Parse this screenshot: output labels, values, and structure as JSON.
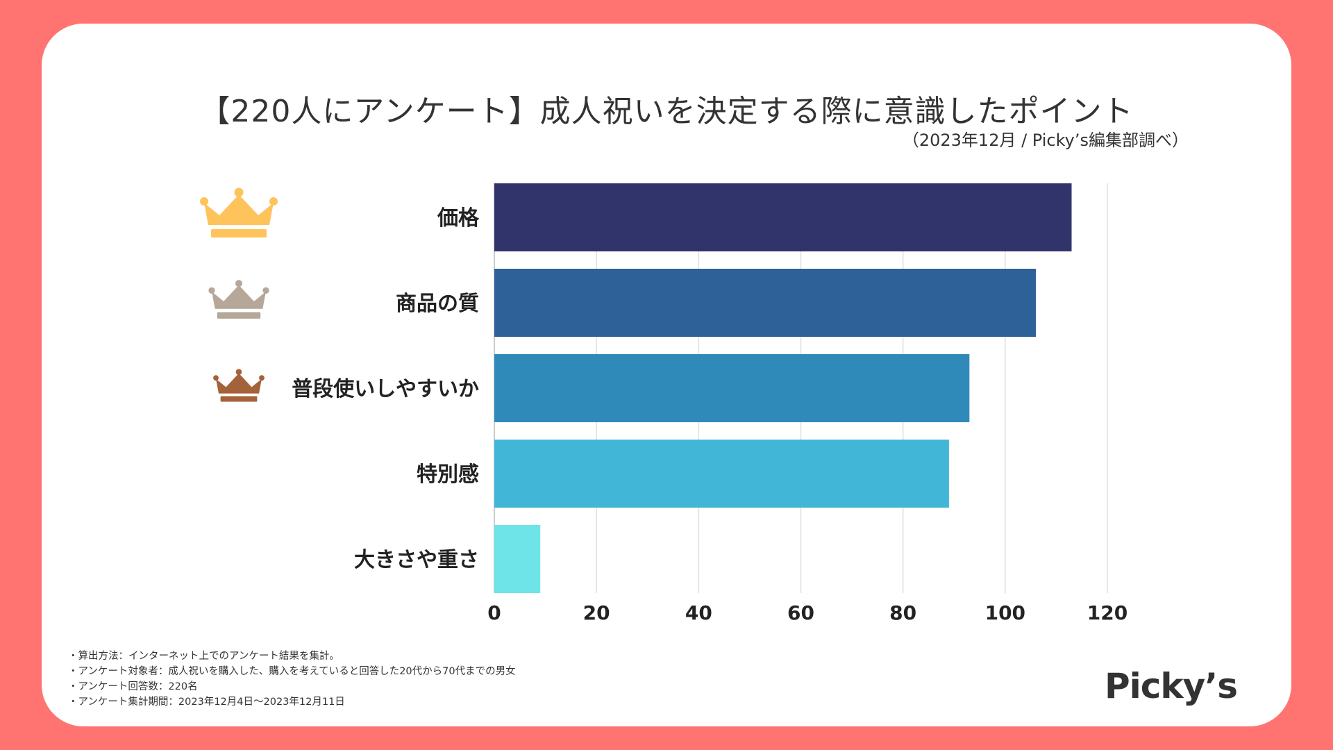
{
  "title": "【220人にアンケート】成人祝いを決定する際に意識したポイント",
  "subtitle": "（2023年12月 / Picky’s編集部調べ）",
  "chart_data": {
    "type": "bar",
    "orientation": "horizontal",
    "categories": [
      "価格",
      "商品の質",
      "普段使いしやすいか",
      "特別感",
      "大きさや重さ"
    ],
    "values": [
      113,
      106,
      93,
      89,
      9
    ],
    "colors": [
      "#30346b",
      "#2e6198",
      "#2f8ab9",
      "#41b6d6",
      "#6ee4e8"
    ],
    "rank_icons": [
      "gold-crown-icon",
      "silver-crown-icon",
      "bronze-crown-icon"
    ],
    "crown_colors": [
      "#ffc35c",
      "#b7a799",
      "#a4623a"
    ],
    "xlim": [
      0,
      120
    ],
    "xticks": [
      0,
      20,
      40,
      60,
      80,
      100,
      120
    ],
    "grid": true,
    "xlabel": "",
    "ylabel": ""
  },
  "notes": [
    "・算出方法：インターネット上でのアンケート結果を集計。",
    "・アンケート対象者：成人祝いを購入した、購入を考えていると回答した20代から70代までの男女",
    "・アンケート回答数：220名",
    "・アンケート集計期間：2023年12月4日〜2023年12月11日"
  ],
  "logo": "Picky’s",
  "colors": {
    "background": "#ff7471",
    "card": "#ffffff",
    "text": "#333333",
    "grid": "#e0e0e0"
  }
}
